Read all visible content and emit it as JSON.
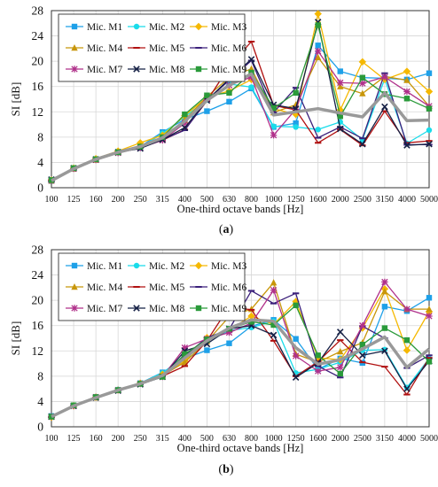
{
  "panels": [
    {
      "caption_open": "(",
      "caption_letter": "a",
      "caption_close": ")"
    },
    {
      "caption_open": "(",
      "caption_letter": "b",
      "caption_close": ")"
    }
  ],
  "chart_data": [
    {
      "type": "line",
      "xlabel": "One-third octave bands [Hz]",
      "ylabel": "SI [dB]",
      "ylim": [
        0,
        28
      ],
      "yticks": [
        0,
        4,
        8,
        12,
        16,
        20,
        24,
        28
      ],
      "categories": [
        "100",
        "125",
        "160",
        "200",
        "250",
        "315",
        "400",
        "500",
        "630",
        "800",
        "1000",
        "1250",
        "1600",
        "2000",
        "2500",
        "3150",
        "4000",
        "5000"
      ],
      "grid": true,
      "legend_position": "top-left",
      "series": [
        {
          "name": "Mic. M1",
          "color": "#1ea0e8",
          "marker": "square",
          "values": [
            1.2,
            3.0,
            4.5,
            5.7,
            6.5,
            8.8,
            10.8,
            12.1,
            13.6,
            15.7,
            9.6,
            10.2,
            22.5,
            18.4,
            17.4,
            17.3,
            17.1,
            18.1
          ]
        },
        {
          "name": "Mic. M2",
          "color": "#19dcea",
          "marker": "circle",
          "values": [
            1.0,
            3.1,
            4.4,
            5.6,
            6.3,
            8.6,
            11.2,
            13.9,
            16.4,
            15.9,
            9.7,
            9.6,
            9.2,
            10.4,
            7.6,
            17.2,
            7.0,
            9.1
          ]
        },
        {
          "name": "Mic. M3",
          "color": "#f5b800",
          "marker": "diamond",
          "values": [
            1.2,
            3.1,
            4.6,
            5.8,
            7.1,
            8.3,
            11.4,
            14.3,
            15.3,
            17.1,
            12.5,
            11.6,
            27.5,
            12.3,
            19.9,
            17.1,
            18.4,
            15.2
          ]
        },
        {
          "name": "Mic. M4",
          "color": "#c8960a",
          "marker": "triangle",
          "values": [
            1.1,
            3.0,
            4.4,
            5.6,
            6.6,
            7.8,
            10.7,
            14.4,
            17.4,
            18.8,
            11.9,
            13.1,
            20.6,
            16.0,
            14.9,
            17.6,
            17.0,
            12.9
          ]
        },
        {
          "name": "Mic. M5",
          "color": "#b01010",
          "marker": "dash",
          "values": [
            1.2,
            3.0,
            4.5,
            5.5,
            6.4,
            7.5,
            9.2,
            13.7,
            19.2,
            23.1,
            13.0,
            12.3,
            7.1,
            9.2,
            6.7,
            12.1,
            7.1,
            7.4
          ]
        },
        {
          "name": "Mic. M6",
          "color": "#3a1f7a",
          "marker": "dash",
          "values": [
            1.0,
            2.9,
            4.5,
            5.6,
            6.3,
            7.6,
            9.1,
            13.8,
            17.0,
            20.1,
            11.9,
            15.8,
            7.9,
            9.6,
            7.8,
            18.1,
            6.8,
            6.8
          ]
        },
        {
          "name": "Mic. M7",
          "color": "#b0308a",
          "marker": "star",
          "values": [
            1.1,
            3.0,
            4.4,
            5.5,
            6.3,
            7.5,
            10.2,
            14.2,
            16.2,
            17.5,
            8.3,
            12.4,
            21.6,
            16.6,
            16.5,
            17.5,
            15.2,
            12.9
          ]
        },
        {
          "name": "Mic. M8",
          "color": "#152045",
          "marker": "x",
          "values": [
            1.3,
            3.1,
            4.5,
            5.6,
            6.2,
            7.6,
            9.5,
            13.8,
            17.2,
            20.3,
            13.1,
            12.5,
            26.2,
            9.3,
            6.9,
            12.8,
            6.7,
            6.9
          ]
        },
        {
          "name": "Mic. M9",
          "color": "#2a9a3a",
          "marker": "square",
          "values": [
            1.2,
            3.1,
            4.5,
            5.6,
            6.5,
            8.0,
            11.6,
            14.6,
            15.0,
            18.2,
            12.6,
            15.0,
            25.7,
            11.3,
            17.4,
            14.8,
            14.1,
            12.5
          ]
        },
        {
          "color": "#999999",
          "marker": "none",
          "width": 3.5,
          "values": [
            1.1,
            3.0,
            4.5,
            5.6,
            6.5,
            7.9,
            10.5,
            13.8,
            16.2,
            18.0,
            11.5,
            12.0,
            12.5,
            11.8,
            11.2,
            15.0,
            10.6,
            10.7
          ]
        }
      ]
    },
    {
      "type": "line",
      "xlabel": "One-third octave bands [Hz]",
      "ylabel": "SI [dB]",
      "ylim": [
        0,
        28
      ],
      "yticks": [
        0,
        4,
        8,
        12,
        16,
        20,
        24,
        28
      ],
      "categories": [
        "100",
        "125",
        "160",
        "200",
        "250",
        "315",
        "400",
        "500",
        "630",
        "800",
        "1000",
        "1250",
        "1600",
        "2000",
        "2500",
        "3150",
        "4000",
        "5000"
      ],
      "grid": true,
      "legend_position": "top-left",
      "series": [
        {
          "name": "Mic. M1",
          "color": "#1ea0e8",
          "marker": "square",
          "values": [
            1.7,
            3.4,
            4.7,
            5.8,
            6.9,
            8.6,
            10.8,
            12.1,
            13.2,
            15.9,
            16.9,
            13.9,
            9.1,
            10.8,
            10.1,
            19.0,
            18.3,
            20.4
          ]
        },
        {
          "name": "Mic. M2",
          "color": "#19dcea",
          "marker": "circle",
          "values": [
            1.6,
            3.3,
            4.7,
            5.9,
            6.9,
            8.5,
            11.2,
            13.5,
            15.2,
            15.7,
            16.7,
            8.5,
            9.1,
            10.2,
            12.1,
            12.2,
            6.2,
            10.8
          ]
        },
        {
          "name": "Mic. M3",
          "color": "#f5b800",
          "marker": "diamond",
          "values": [
            1.5,
            3.3,
            4.7,
            5.8,
            6.9,
            8.3,
            10.4,
            14.1,
            15.3,
            17.5,
            16.2,
            19.8,
            10.9,
            10.6,
            15.6,
            21.8,
            12.1,
            18.2
          ]
        },
        {
          "name": "Mic. M4",
          "color": "#c8960a",
          "marker": "triangle",
          "values": [
            1.6,
            3.4,
            4.6,
            5.8,
            6.8,
            8.1,
            10.2,
            13.5,
            17.4,
            18.6,
            22.8,
            11.5,
            10.2,
            11.9,
            13.3,
            21.4,
            18.6,
            18.6
          ]
        },
        {
          "name": "Mic. M5",
          "color": "#b01010",
          "marker": "dash",
          "values": [
            1.6,
            3.3,
            4.6,
            5.8,
            6.8,
            8.0,
            9.6,
            13.6,
            19.0,
            18.5,
            13.6,
            8.0,
            10.3,
            13.7,
            10.2,
            9.5,
            5.1,
            10.9
          ]
        },
        {
          "name": "Mic. M6",
          "color": "#3a1f7a",
          "marker": "dash",
          "values": [
            1.5,
            3.4,
            4.6,
            5.7,
            6.7,
            8.1,
            11.2,
            14.1,
            15.4,
            21.5,
            19.5,
            21.1,
            9.6,
            7.8,
            15.9,
            14.0,
            9.3,
            11.3
          ]
        },
        {
          "name": "Mic. M7",
          "color": "#b0308a",
          "marker": "star",
          "values": [
            1.6,
            3.3,
            4.7,
            5.8,
            6.8,
            7.9,
            12.5,
            13.9,
            14.9,
            16.4,
            21.6,
            11.2,
            8.8,
            9.4,
            16.0,
            22.9,
            18.6,
            17.5
          ]
        },
        {
          "name": "Mic. M8",
          "color": "#152045",
          "marker": "x",
          "values": [
            1.6,
            3.3,
            4.6,
            5.7,
            6.7,
            7.9,
            12.0,
            13.1,
            15.5,
            16.0,
            14.5,
            7.8,
            10.1,
            15.0,
            11.3,
            12.0,
            6.0,
            10.4
          ]
        },
        {
          "name": "Mic. M9",
          "color": "#2a9a3a",
          "marker": "square",
          "values": [
            1.6,
            3.4,
            4.7,
            5.8,
            6.8,
            7.9,
            11.5,
            13.8,
            15.5,
            16.6,
            16.1,
            19.2,
            11.3,
            8.4,
            13.0,
            15.6,
            13.7,
            10.3
          ]
        },
        {
          "color": "#999999",
          "marker": "none",
          "width": 3.5,
          "values": [
            1.6,
            3.3,
            4.6,
            5.8,
            6.8,
            8.1,
            10.9,
            13.6,
            15.6,
            16.9,
            16.7,
            12.5,
            9.9,
            10.6,
            12.3,
            14.2,
            9.4,
            12.3
          ]
        }
      ]
    }
  ]
}
